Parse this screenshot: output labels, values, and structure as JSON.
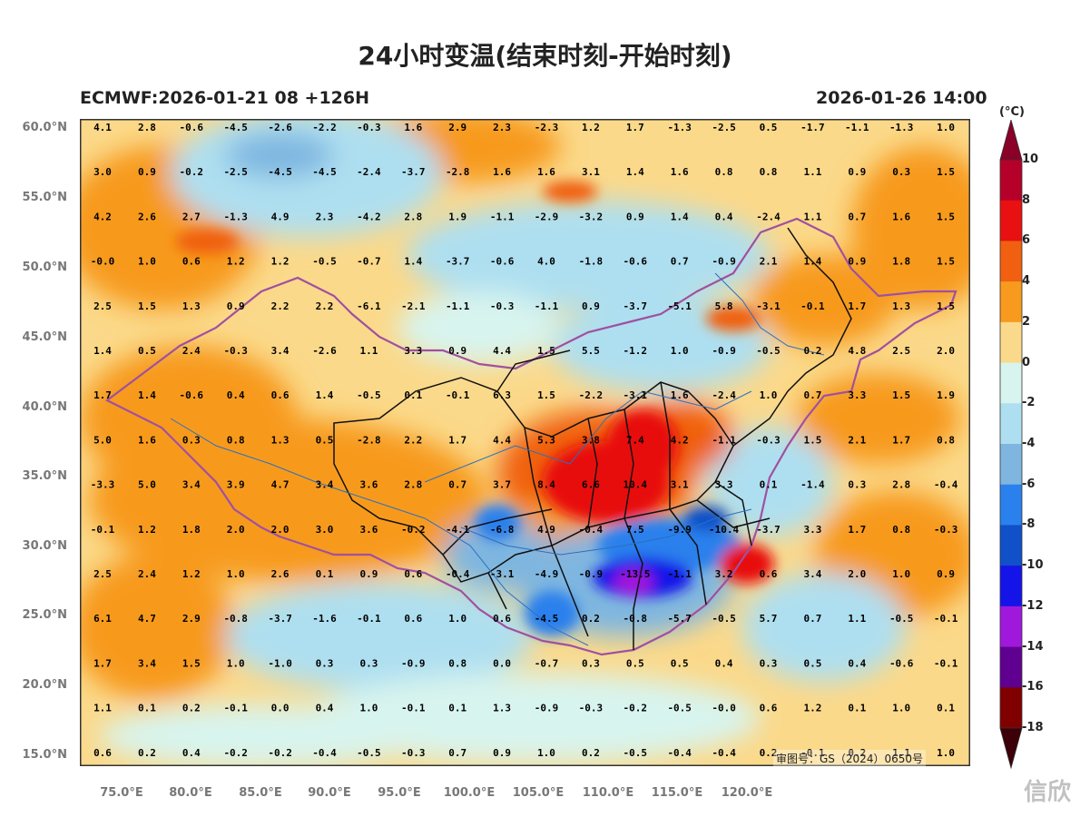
{
  "header": {
    "title": "24小时变温(结束时刻-开始时刻)",
    "subtitle_left": "ECMWF:2026-01-21 08 +126H",
    "subtitle_right": "2026-01-26 14:00"
  },
  "map": {
    "lat_labels": [
      "60.0°N",
      "55.0°N",
      "50.0°N",
      "45.0°N",
      "40.0°N",
      "35.0°N",
      "30.0°N",
      "25.0°N",
      "20.0°N",
      "15.0°N"
    ],
    "lon_labels": [
      "75.0°E",
      "80.0°E",
      "85.0°E",
      "90.0°E",
      "95.0°E",
      "100.0°E",
      "105.0°E",
      "110.0°E",
      "115.0°E",
      "120.0°E"
    ],
    "grid_values": [
      [
        "4.1",
        "2.8",
        "-0.6",
        "-4.5",
        "-2.6",
        "-2.2",
        "-0.3",
        "1.6",
        "2.9",
        "2.3",
        "-2.3",
        "1.2",
        "1.7",
        "-1.3",
        "-2.5",
        "0.5",
        "-1.7",
        "-1.1",
        "-1.3",
        "1.0"
      ],
      [
        "3.0",
        "0.9",
        "-0.2",
        "-2.5",
        "-4.5",
        "-4.5",
        "-2.4",
        "-3.7",
        "-2.8",
        "1.6",
        "1.6",
        "3.1",
        "1.4",
        "1.6",
        "0.8",
        "0.8",
        "1.1",
        "0.9",
        "0.3",
        "1.5"
      ],
      [
        "4.2",
        "2.6",
        "2.7",
        "-1.3",
        "4.9",
        "2.3",
        "-4.2",
        "2.8",
        "1.9",
        "-1.1",
        "-2.9",
        "-3.2",
        "0.9",
        "1.4",
        "0.4",
        "-2.4",
        "1.1",
        "0.7",
        "1.6",
        "1.5"
      ],
      [
        "-0.0",
        "1.0",
        "0.6",
        "1.2",
        "1.2",
        "-0.5",
        "-0.7",
        "1.4",
        "-3.7",
        "-0.6",
        "4.0",
        "-1.8",
        "-0.6",
        "0.7",
        "-0.9",
        "2.1",
        "1.4",
        "0.9",
        "1.8",
        "1.5"
      ],
      [
        "2.5",
        "1.5",
        "1.3",
        "0.9",
        "2.2",
        "2.2",
        "-6.1",
        "-2.1",
        "-1.1",
        "-0.3",
        "-1.1",
        "0.9",
        "-3.7",
        "-5.1",
        "5.8",
        "-3.1",
        "-0.1",
        "1.7",
        "1.3",
        "1.5"
      ],
      [
        "1.4",
        "0.5",
        "2.4",
        "-0.3",
        "3.4",
        "-2.6",
        "1.1",
        "3.3",
        "0.9",
        "4.4",
        "1.5",
        "5.5",
        "-1.2",
        "1.0",
        "-0.9",
        "-0.5",
        "0.2",
        "4.8",
        "2.5",
        "2.0"
      ],
      [
        "1.7",
        "1.4",
        "-0.6",
        "0.4",
        "0.6",
        "1.4",
        "-0.5",
        "0.1",
        "-0.1",
        "6.3",
        "1.5",
        "-2.2",
        "-3.1",
        "1.6",
        "-2.4",
        "1.0",
        "0.7",
        "3.3",
        "1.5",
        "1.9"
      ],
      [
        "5.0",
        "1.6",
        "0.3",
        "0.8",
        "1.3",
        "0.5",
        "-2.8",
        "2.2",
        "1.7",
        "4.4",
        "5.3",
        "3.8",
        "7.4",
        "4.2",
        "-1.1",
        "-0.3",
        "1.5",
        "2.1",
        "1.7",
        "0.8"
      ],
      [
        "-3.3",
        "5.0",
        "3.4",
        "3.9",
        "4.7",
        "3.4",
        "3.6",
        "2.8",
        "0.7",
        "3.7",
        "8.4",
        "6.6",
        "10.4",
        "3.1",
        "3.3",
        "0.1",
        "-1.4",
        "0.3",
        "2.8",
        "-0.4"
      ],
      [
        "-0.1",
        "1.2",
        "1.8",
        "2.0",
        "2.0",
        "3.0",
        "3.6",
        "-0.2",
        "-4.1",
        "-6.8",
        "4.9",
        "-0.4",
        "7.5",
        "-9.9",
        "-10.4",
        "-3.7",
        "3.3",
        "1.7",
        "0.8",
        "-0.3"
      ],
      [
        "2.5",
        "2.4",
        "1.2",
        "1.0",
        "2.6",
        "0.1",
        "0.9",
        "0.6",
        "-0.4",
        "-3.1",
        "-4.9",
        "-0.9",
        "-13.5",
        "-1.1",
        "3.2",
        "0.6",
        "3.4",
        "2.0",
        "1.0",
        "0.9"
      ],
      [
        "6.1",
        "4.7",
        "2.9",
        "-0.8",
        "-3.7",
        "-1.6",
        "-0.1",
        "0.6",
        "1.0",
        "0.6",
        "-4.5",
        "0.2",
        "-0.8",
        "-5.7",
        "-0.5",
        "5.7",
        "0.7",
        "1.1",
        "-0.5",
        "-0.1"
      ],
      [
        "1.7",
        "3.4",
        "1.5",
        "1.0",
        "-1.0",
        "0.3",
        "0.3",
        "-0.9",
        "0.8",
        "0.0",
        "-0.7",
        "0.3",
        "0.5",
        "0.5",
        "0.4",
        "0.3",
        "0.5",
        "0.4",
        "-0.6",
        "-0.1"
      ],
      [
        "1.1",
        "0.1",
        "0.2",
        "-0.1",
        "0.0",
        "0.4",
        "1.0",
        "-0.1",
        "0.1",
        "1.3",
        "-0.9",
        "-0.3",
        "-0.2",
        "-0.5",
        "-0.0",
        "0.6",
        "1.2",
        "0.1",
        "1.0",
        "0.1"
      ],
      [
        "0.6",
        "0.2",
        "0.4",
        "-0.2",
        "-0.2",
        "-0.4",
        "-0.5",
        "-0.3",
        "0.7",
        "0.9",
        "1.0",
        "0.2",
        "-0.5",
        "-0.4",
        "-0.4",
        "0.2",
        "-0.1",
        "0.2",
        "1.1",
        "1.0"
      ]
    ],
    "approval": "审图号：GS（2024）0650号"
  },
  "colorbar": {
    "unit": "(°C)",
    "labels": [
      "10",
      "8",
      "6",
      "4",
      "2",
      "0",
      "-2",
      "-4",
      "-6",
      "-8",
      "-10",
      "-12",
      "-14",
      "-16",
      "-18"
    ],
    "colors": [
      "#b5002a",
      "#e81010",
      "#f06010",
      "#f79a1e",
      "#fbd98a",
      "#d8f4ee",
      "#aedff0",
      "#7eb6e0",
      "#2a80ec",
      "#1050c8",
      "#1414e8",
      "#a018dc",
      "#600090",
      "#800000"
    ],
    "top_color": "#8a0028",
    "bottom_color": "#3d0008"
  },
  "watermark": "信欣"
}
